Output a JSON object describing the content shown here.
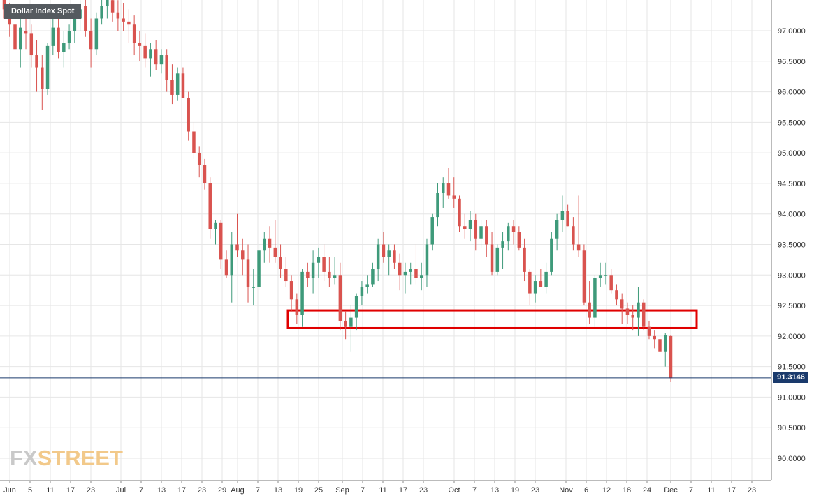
{
  "chart_data": {
    "type": "candlestick",
    "title": "Dollar Index Spot",
    "y_ticks": [
      "97.0000",
      "96.5000",
      "96.0000",
      "95.5000",
      "95.0000",
      "94.5000",
      "94.0000",
      "93.5000",
      "93.0000",
      "92.5000",
      "92.0000",
      "91.5000",
      "91.0000",
      "90.5000",
      "90.0000"
    ],
    "ylim": [
      89.62,
      97.46
    ],
    "x_ticks": [
      "Jun",
      "5",
      "11",
      "17",
      "23",
      "Jul",
      "7",
      "13",
      "17",
      "23",
      "29",
      "Aug",
      "7",
      "13",
      "19",
      "25",
      "Sep",
      "7",
      "11",
      "17",
      "23",
      "Oct",
      "7",
      "13",
      "19",
      "23",
      "Nov",
      "6",
      "12",
      "18",
      "24",
      "Dec",
      "7",
      "11",
      "17",
      "23"
    ],
    "last_price": "91.3146",
    "last_price_value": 91.3146,
    "zone": {
      "low": 92.13,
      "high": 92.42,
      "color": "#e00000"
    },
    "colors": {
      "up": "#3e9a7a",
      "down": "#d9534f",
      "price_line": "#1a3a6c",
      "grid": "#e6e6e6"
    },
    "grid": true,
    "candles": [
      [
        97.55,
        97.6,
        97.2,
        97.35
      ],
      [
        97.3,
        97.45,
        96.9,
        97.1
      ],
      [
        97.1,
        97.2,
        96.6,
        96.7
      ],
      [
        96.7,
        97.2,
        96.4,
        97.05
      ],
      [
        97.0,
        97.3,
        96.7,
        96.95
      ],
      [
        96.95,
        97.1,
        96.4,
        96.6
      ],
      [
        96.6,
        96.85,
        96.0,
        96.4
      ],
      [
        96.4,
        96.6,
        95.7,
        96.05
      ],
      [
        96.05,
        96.8,
        95.95,
        96.75
      ],
      [
        96.75,
        97.2,
        96.6,
        97.05
      ],
      [
        97.05,
        97.3,
        96.55,
        96.65
      ],
      [
        96.65,
        97.0,
        96.4,
        96.8
      ],
      [
        96.8,
        97.1,
        96.7,
        97.0
      ],
      [
        97.0,
        97.3,
        96.8,
        97.2
      ],
      [
        97.2,
        97.5,
        97.0,
        97.35
      ],
      [
        97.4,
        97.55,
        96.9,
        97.0
      ],
      [
        97.0,
        97.2,
        96.4,
        96.7
      ],
      [
        96.7,
        97.3,
        96.6,
        97.2
      ],
      [
        97.2,
        97.6,
        97.1,
        97.4
      ],
      [
        97.4,
        97.7,
        97.2,
        97.55
      ],
      [
        97.5,
        97.65,
        97.15,
        97.3
      ],
      [
        97.3,
        97.5,
        97.0,
        97.2
      ],
      [
        97.2,
        97.45,
        97.0,
        97.15
      ],
      [
        97.15,
        97.35,
        96.8,
        97.1
      ],
      [
        97.1,
        97.25,
        96.6,
        96.8
      ],
      [
        96.8,
        97.0,
        96.5,
        96.75
      ],
      [
        96.75,
        96.95,
        96.4,
        96.55
      ],
      [
        96.55,
        96.8,
        96.25,
        96.7
      ],
      [
        96.7,
        96.85,
        96.35,
        96.45
      ],
      [
        96.45,
        96.7,
        96.3,
        96.6
      ],
      [
        96.6,
        96.7,
        96.0,
        96.2
      ],
      [
        96.2,
        96.45,
        95.8,
        95.95
      ],
      [
        95.95,
        96.4,
        95.85,
        96.3
      ],
      [
        96.3,
        96.4,
        95.9,
        95.9
      ],
      [
        95.9,
        96.0,
        95.2,
        95.35
      ],
      [
        95.35,
        95.5,
        94.9,
        95.0
      ],
      [
        95.0,
        95.1,
        94.6,
        94.8
      ],
      [
        94.8,
        94.9,
        94.4,
        94.5
      ],
      [
        94.5,
        94.6,
        93.6,
        93.75
      ],
      [
        93.75,
        93.9,
        93.5,
        93.85
      ],
      [
        93.85,
        93.9,
        93.1,
        93.25
      ],
      [
        93.25,
        93.4,
        92.95,
        93.0
      ],
      [
        93.0,
        93.7,
        92.55,
        93.5
      ],
      [
        93.5,
        94.0,
        93.3,
        93.4
      ],
      [
        93.4,
        93.6,
        93.0,
        93.25
      ],
      [
        93.25,
        93.5,
        92.55,
        92.8
      ],
      [
        92.8,
        93.1,
        92.5,
        92.8
      ],
      [
        92.8,
        93.5,
        92.75,
        93.4
      ],
      [
        93.4,
        93.7,
        93.2,
        93.6
      ],
      [
        93.6,
        93.8,
        93.2,
        93.45
      ],
      [
        93.45,
        93.9,
        93.2,
        93.3
      ],
      [
        93.3,
        93.5,
        92.95,
        93.1
      ],
      [
        93.1,
        93.3,
        92.8,
        92.9
      ],
      [
        92.9,
        93.0,
        92.4,
        92.6
      ],
      [
        92.6,
        92.7,
        92.2,
        92.35
      ],
      [
        92.35,
        93.1,
        92.15,
        93.05
      ],
      [
        93.05,
        93.2,
        92.8,
        92.95
      ],
      [
        92.95,
        93.4,
        92.7,
        93.2
      ],
      [
        93.2,
        93.45,
        92.95,
        93.3
      ],
      [
        93.3,
        93.5,
        92.9,
        93.05
      ],
      [
        93.05,
        93.3,
        92.8,
        92.95
      ],
      [
        92.95,
        93.3,
        92.85,
        93.0
      ],
      [
        93.0,
        93.2,
        92.1,
        92.25
      ],
      [
        92.25,
        92.4,
        91.95,
        92.15
      ],
      [
        92.15,
        92.5,
        91.75,
        92.3
      ],
      [
        92.3,
        92.7,
        92.1,
        92.65
      ],
      [
        92.65,
        92.9,
        92.5,
        92.8
      ],
      [
        92.8,
        93.0,
        92.7,
        92.85
      ],
      [
        92.85,
        93.2,
        92.8,
        93.1
      ],
      [
        93.1,
        93.6,
        92.9,
        93.5
      ],
      [
        93.5,
        93.7,
        93.2,
        93.3
      ],
      [
        93.3,
        93.5,
        93.0,
        93.4
      ],
      [
        93.4,
        93.5,
        93.1,
        93.2
      ],
      [
        93.2,
        93.35,
        92.75,
        93.0
      ],
      [
        93.0,
        93.2,
        92.7,
        93.05
      ],
      [
        93.05,
        93.2,
        92.85,
        93.1
      ],
      [
        93.1,
        93.5,
        92.85,
        92.95
      ],
      [
        92.95,
        93.2,
        92.75,
        93.0
      ],
      [
        93.0,
        93.6,
        92.8,
        93.5
      ],
      [
        93.5,
        94.0,
        93.4,
        93.95
      ],
      [
        93.95,
        94.5,
        93.8,
        94.35
      ],
      [
        94.35,
        94.6,
        94.1,
        94.5
      ],
      [
        94.5,
        94.75,
        94.25,
        94.3
      ],
      [
        94.3,
        94.6,
        94.1,
        94.25
      ],
      [
        94.25,
        94.3,
        93.7,
        93.8
      ],
      [
        93.8,
        94.0,
        93.6,
        93.75
      ],
      [
        93.75,
        94.05,
        93.55,
        93.9
      ],
      [
        93.9,
        94.0,
        93.4,
        93.6
      ],
      [
        93.6,
        93.9,
        93.45,
        93.8
      ],
      [
        93.8,
        93.9,
        93.3,
        93.5
      ],
      [
        93.5,
        93.7,
        93.0,
        93.05
      ],
      [
        93.05,
        93.5,
        93.0,
        93.45
      ],
      [
        93.45,
        93.7,
        93.1,
        93.55
      ],
      [
        93.55,
        93.85,
        93.4,
        93.8
      ],
      [
        93.8,
        93.9,
        93.5,
        93.7
      ],
      [
        93.7,
        93.8,
        93.4,
        93.45
      ],
      [
        93.45,
        93.6,
        92.9,
        93.05
      ],
      [
        93.05,
        93.1,
        92.5,
        92.7
      ],
      [
        92.7,
        93.0,
        92.55,
        92.9
      ],
      [
        92.9,
        93.1,
        92.8,
        92.8
      ],
      [
        92.8,
        93.2,
        92.7,
        93.05
      ],
      [
        93.05,
        93.7,
        93.0,
        93.6
      ],
      [
        93.6,
        94.0,
        93.4,
        93.9
      ],
      [
        93.9,
        94.3,
        93.7,
        94.05
      ],
      [
        94.05,
        94.15,
        93.8,
        93.8
      ],
      [
        93.8,
        93.95,
        93.4,
        93.5
      ],
      [
        93.5,
        94.3,
        93.3,
        93.4
      ],
      [
        93.4,
        93.5,
        92.5,
        92.55
      ],
      [
        92.55,
        92.9,
        92.2,
        92.3
      ],
      [
        92.3,
        93.0,
        92.15,
        92.95
      ],
      [
        92.95,
        93.2,
        92.8,
        93.0
      ],
      [
        93.0,
        93.2,
        92.85,
        93.0
      ],
      [
        93.0,
        93.1,
        92.7,
        92.75
      ],
      [
        92.75,
        92.85,
        92.5,
        92.6
      ],
      [
        92.6,
        92.7,
        92.2,
        92.45
      ],
      [
        92.45,
        92.55,
        92.2,
        92.35
      ],
      [
        92.35,
        92.5,
        92.1,
        92.3
      ],
      [
        92.3,
        92.8,
        92.0,
        92.55
      ],
      [
        92.55,
        92.6,
        92.1,
        92.15
      ],
      [
        92.15,
        92.25,
        91.95,
        92.0
      ],
      [
        92.0,
        92.1,
        91.8,
        91.95
      ],
      [
        91.95,
        92.05,
        91.6,
        91.75
      ],
      [
        91.75,
        92.05,
        91.5,
        92.02
      ],
      [
        92.0,
        92.02,
        91.25,
        91.31
      ]
    ]
  },
  "logo": {
    "fx": "FX",
    "street": "STREET"
  }
}
